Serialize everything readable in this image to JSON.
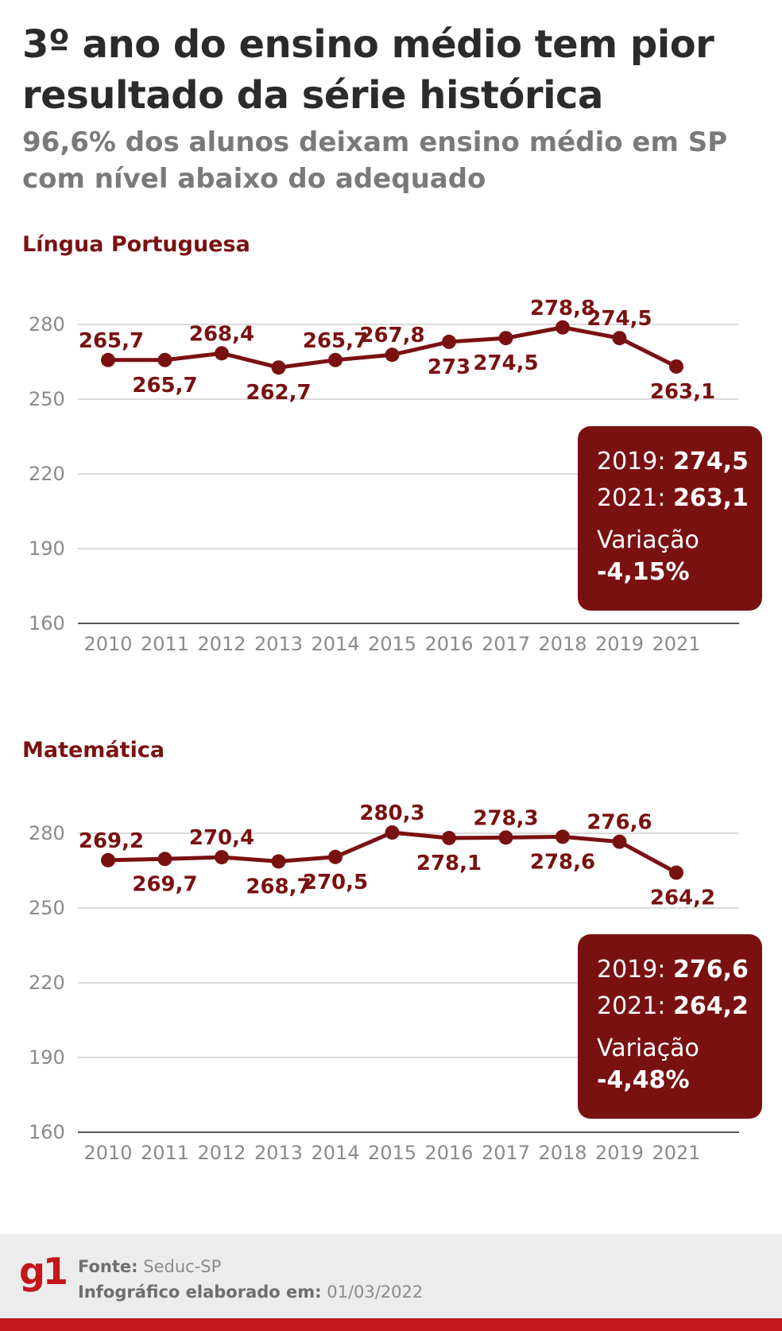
{
  "title": "3º ano do ensino médio tem pior resultado da série histórica",
  "subtitle": "96,6% dos alunos deixam ensino médio em SP com nível abaixo do adequado",
  "colors": {
    "accent": "#7a1111",
    "brand": "#c4161c",
    "text": "#2b2b2b",
    "muted": "#8a8a8a"
  },
  "chart_data": [
    {
      "type": "line",
      "title": "Língua Portuguesa",
      "categories": [
        "2010",
        "2011",
        "2012",
        "2013",
        "2014",
        "2015",
        "2016",
        "2017",
        "2018",
        "2019",
        "2021"
      ],
      "values": [
        265.7,
        265.7,
        268.4,
        262.7,
        265.7,
        267.8,
        273,
        274.5,
        278.8,
        274.5,
        263.1
      ],
      "data_labels": [
        "265,7",
        "265,7",
        "268,4",
        "262,7",
        "265,7",
        "267,8",
        "273",
        "274,5",
        "278,8",
        "274,5",
        "263,1"
      ],
      "yticks": [
        280,
        250,
        220,
        190,
        160
      ],
      "ylim": [
        160,
        280
      ],
      "grid": true,
      "summary": {
        "label_a": "2019:",
        "value_a": "274,5",
        "label_b": "2021:",
        "value_b": "263,1",
        "variation_label": "Variação",
        "variation_value": "-4,15%"
      }
    },
    {
      "type": "line",
      "title": "Matemática",
      "categories": [
        "2010",
        "2011",
        "2012",
        "2013",
        "2014",
        "2015",
        "2016",
        "2017",
        "2018",
        "2019",
        "2021"
      ],
      "values": [
        269.2,
        269.7,
        270.4,
        268.7,
        270.5,
        280.3,
        278.1,
        278.3,
        278.6,
        276.6,
        264.2
      ],
      "data_labels": [
        "269,2",
        "269,7",
        "270,4",
        "268,7",
        "270,5",
        "280,3",
        "278,1",
        "278,3",
        "278,6",
        "276,6",
        "264,2"
      ],
      "yticks": [
        280,
        250,
        220,
        190,
        160
      ],
      "ylim": [
        160,
        280
      ],
      "grid": true,
      "summary": {
        "label_a": "2019:",
        "value_a": "276,6",
        "label_b": "2021:",
        "value_b": "264,2",
        "variation_label": "Variação",
        "variation_value": "-4,48%"
      }
    }
  ],
  "footer": {
    "source_label": "Fonte:",
    "source_value": "Seduc-SP",
    "date_label": "Infográfico elaborado em:",
    "date_value": "01/03/2022",
    "logo": "g1"
  }
}
